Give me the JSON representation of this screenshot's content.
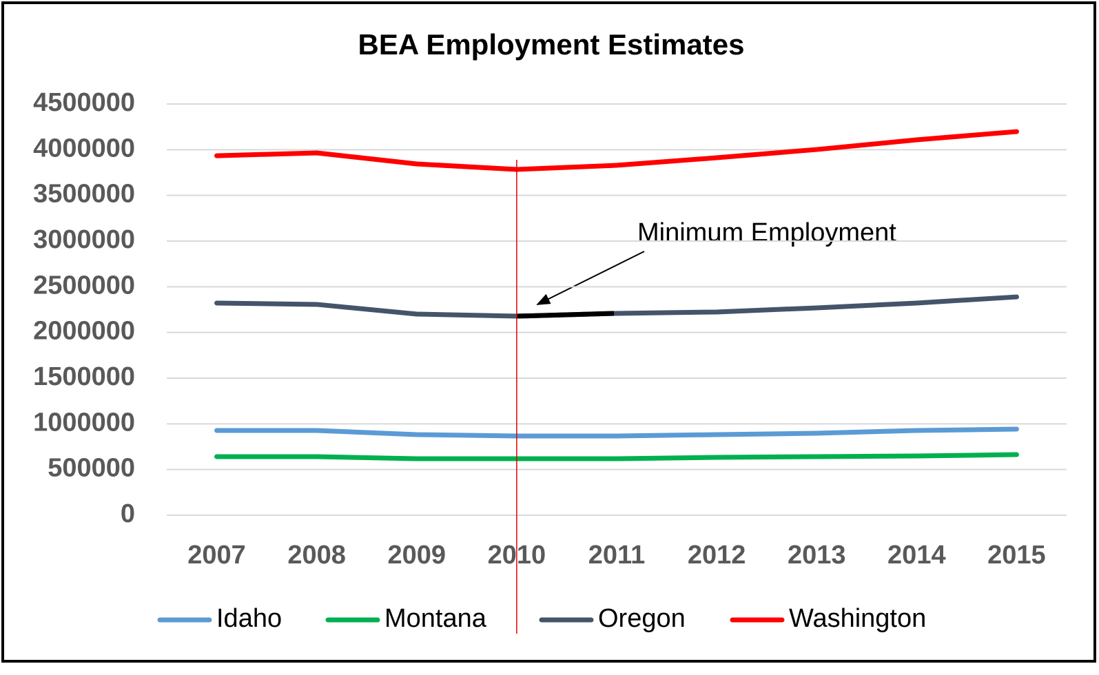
{
  "chart_data": {
    "type": "line",
    "title": "BEA Employment Estimates",
    "annotation": "Minimum Employment",
    "categories": [
      "2007",
      "2008",
      "2009",
      "2010",
      "2011",
      "2012",
      "2013",
      "2014",
      "2015"
    ],
    "series": [
      {
        "name": "Idaho",
        "color": "#5b9bd5",
        "values": [
          927000,
          927000,
          882000,
          867000,
          867000,
          882000,
          897000,
          927000,
          942000
        ]
      },
      {
        "name": "Montana",
        "color": "#00b050",
        "values": [
          641000,
          641000,
          618000,
          618000,
          618000,
          633000,
          641000,
          648000,
          663000
        ]
      },
      {
        "name": "Oregon",
        "color": "#44546a",
        "values": [
          2322000,
          2307000,
          2201000,
          2178000,
          2209000,
          2224000,
          2269000,
          2322000,
          2389000
        ]
      },
      {
        "name": "Washington",
        "color": "#ff0000",
        "values": [
          3934000,
          3965000,
          3844000,
          3784000,
          3829000,
          3912000,
          4002000,
          4108000,
          4198000
        ]
      }
    ],
    "ylim": [
      0,
      4500000
    ],
    "yticks": [
      0,
      500000,
      1000000,
      1500000,
      2000000,
      2500000,
      3000000,
      3500000,
      4000000,
      4500000
    ],
    "grid": true
  }
}
